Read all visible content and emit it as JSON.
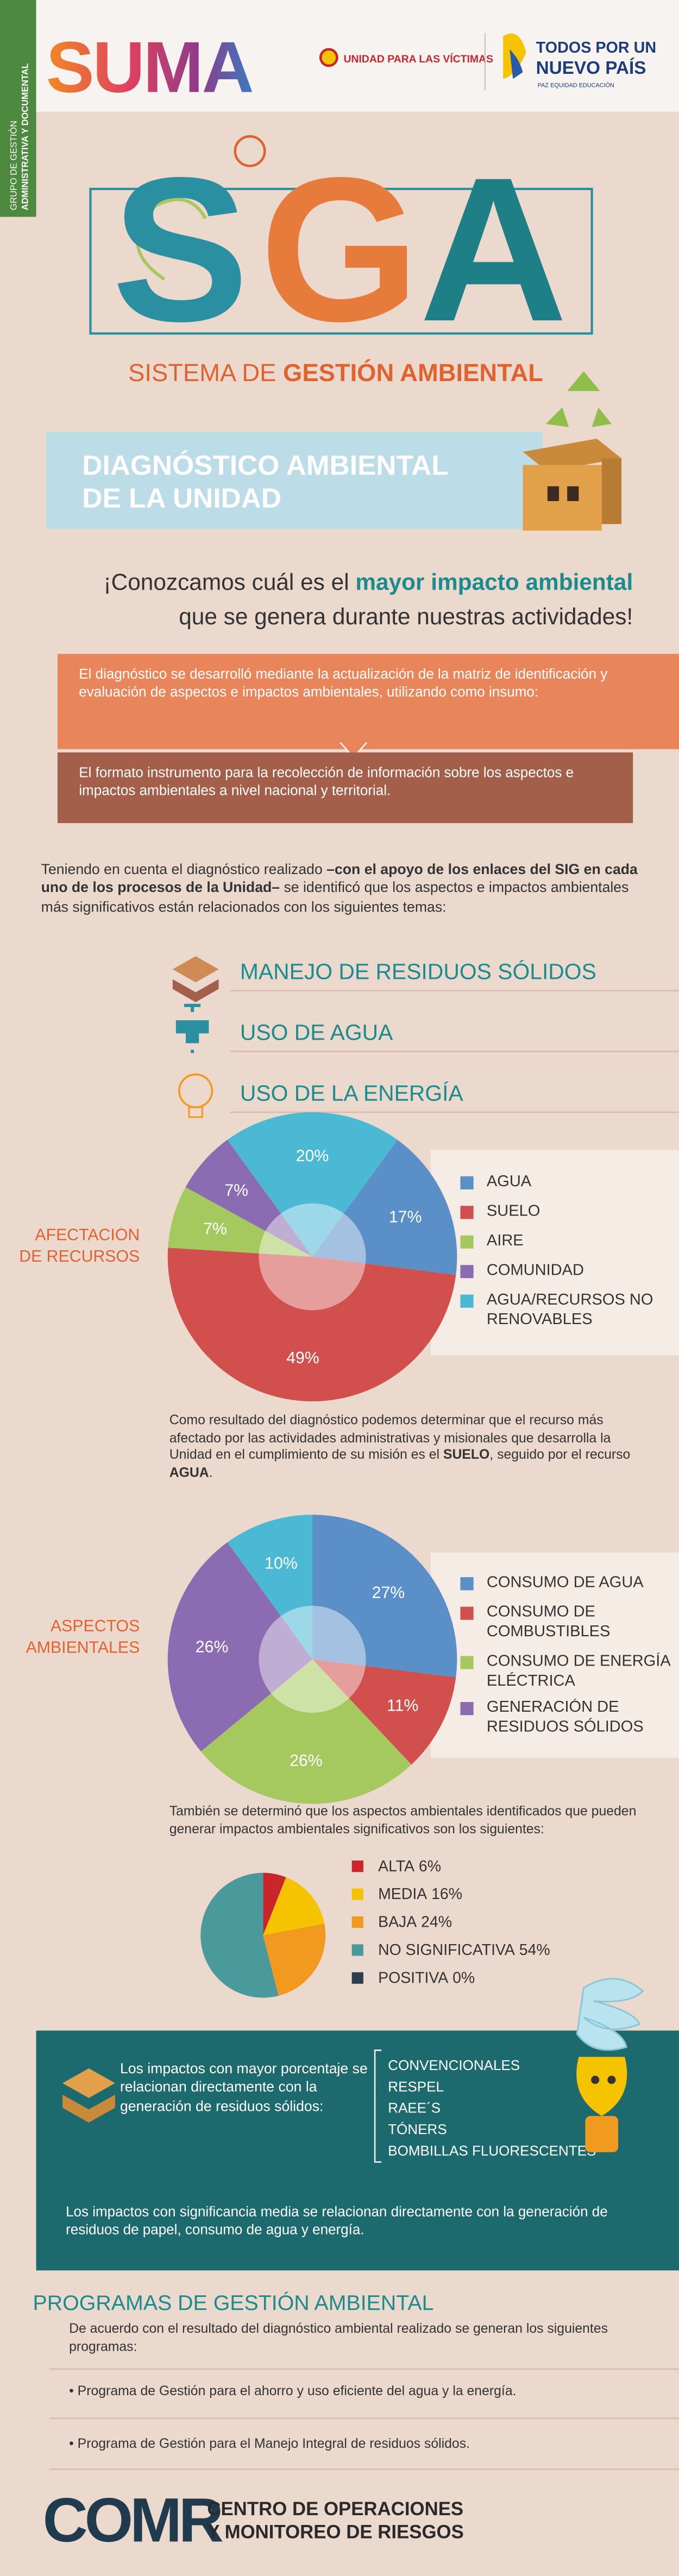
{
  "sidebar": [
    "GRUPO DE GESTIÓN",
    "ADMINISTRATIVA Y DOCUMENTAL"
  ],
  "header": {
    "logo": "SUMA",
    "victims": "UNIDAD PARA LAS VÍCTIMAS",
    "gov": [
      "TODOS POR UN",
      "NUEVO PAÍS"
    ],
    "gov_motto": "PAZ  EQUIDAD  EDUCACIÓN"
  },
  "sga": {
    "letters": [
      "S",
      "G",
      "A"
    ],
    "subtitle": [
      "SISTEMA DE ",
      "GESTIÓN AMBIENTAL"
    ]
  },
  "banner": [
    "DIAGNÓSTICO AMBIENTAL",
    "DE LA UNIDAD"
  ],
  "intro": [
    "¡Conozcamos cuál es el ",
    "mayor impacto ambiental",
    "que se genera durante nuestras actividades!"
  ],
  "method": {
    "text": "El diagnóstico se desarrolló mediante la actualización de la matriz de identificación y evaluación de aspectos e impactos ambientales, utilizando como insumo:",
    "tool": "El formato instrumento para la recolección de información sobre los aspectos e impactos ambientales a nivel nacional y territorial."
  },
  "findings": [
    "Teniendo en cuenta el diagnóstico realizado ",
    "–con el apoyo de los enlaces del SIG en cada uno de los procesos de la Unidad–",
    " se identificó que los aspectos e impactos ambientales más significativos están relacionados con los siguientes temas:"
  ],
  "topics": [
    "MANEJO DE RESIDUOS SÓLIDOS",
    "USO DE AGUA",
    "USO DE LA ENERGÍA"
  ],
  "chart_data": [
    {
      "type": "pie",
      "title": "AFECTACIÓN DE RECURSOS",
      "categories": [
        "AGUA",
        "SUELO",
        "AIRE",
        "COMUNIDAD",
        "AGUA/RECURSOS NO RENOVABLES"
      ],
      "values": [
        17,
        49,
        7,
        7,
        20
      ],
      "value_labels": [
        "17%",
        "49%",
        "7%",
        "7%",
        "20%"
      ],
      "colors": [
        "#5b8fc8",
        "#d14f4d",
        "#a6c95f",
        "#8b6bb1",
        "#4bb8d4"
      ]
    },
    {
      "type": "pie",
      "title": "ASPECTOS AMBIENTALES",
      "categories": [
        "CONSUMO DE AGUA",
        "CONSUMO DE COMBUSTIBLES",
        "CONSUMO DE ENERGÍA ELÉCTRICA",
        "GENERACIÓN DE RESIDUOS SÓLIDOS",
        null
      ],
      "values": [
        27,
        11,
        26,
        26,
        10
      ],
      "value_labels": [
        "27%",
        "11%",
        "26%",
        "26%",
        "10%"
      ],
      "colors": [
        "#5b8fc8",
        "#d14f4d",
        "#a6c95f",
        "#8b6bb1",
        "#4bb8d4"
      ]
    },
    {
      "type": "pie",
      "categories": [
        "ALTA",
        "MEDIA",
        "BAJA",
        "NO SIGNIFICATIVA",
        "POSITIVA"
      ],
      "values": [
        6,
        16,
        24,
        54,
        0
      ],
      "value_labels": [
        "6%",
        "16%",
        "24%",
        "54%",
        "0%"
      ],
      "colors": [
        "#c8262c",
        "#f5c300",
        "#f19a1f",
        "#4a9a9c",
        "#2d3d4e"
      ]
    }
  ],
  "resources_note": [
    "Como resultado del diagnóstico podemos determinar que el recurso más afectado por las actividades administrativas y misionales que desarrolla la Unidad en el cumplimiento de su misión es el ",
    "SUELO",
    ", seguido por el recurso ",
    "AGUA",
    "."
  ],
  "impacts_note": "También se determinó que los aspectos ambientales identificados que pueden generar impactos ambientales significativos son los siguientes:",
  "waste": {
    "text": "Los impactos con mayor porcentaje se relacionan directamente con la generación de residuos sólidos:",
    "types": [
      "CONVENCIONALES",
      "RESPEL",
      "RAEE´S",
      "TÓNERS",
      "BOMBILLAS FLUORESCENTES"
    ],
    "medium": "Los impactos con significancia media se relacionan directamente con la generación de residuos de papel, consumo de agua y energía."
  },
  "programs": {
    "title": "PROGRAMAS DE GESTIÓN AMBIENTAL",
    "text": "De acuerdo con el resultado del diagnóstico ambiental realizado se generan los siguientes programas:",
    "items": [
      "• Programa de Gestión para el ahorro y uso eficiente del agua y la energía.",
      "• Programa de Gestión para el Manejo Integral de residuos sólidos."
    ]
  },
  "footer": {
    "logo": "COMR",
    "name": [
      "CENTRO DE OPERACIONES",
      "Y MONITOREO DE RIESGOS"
    ]
  }
}
